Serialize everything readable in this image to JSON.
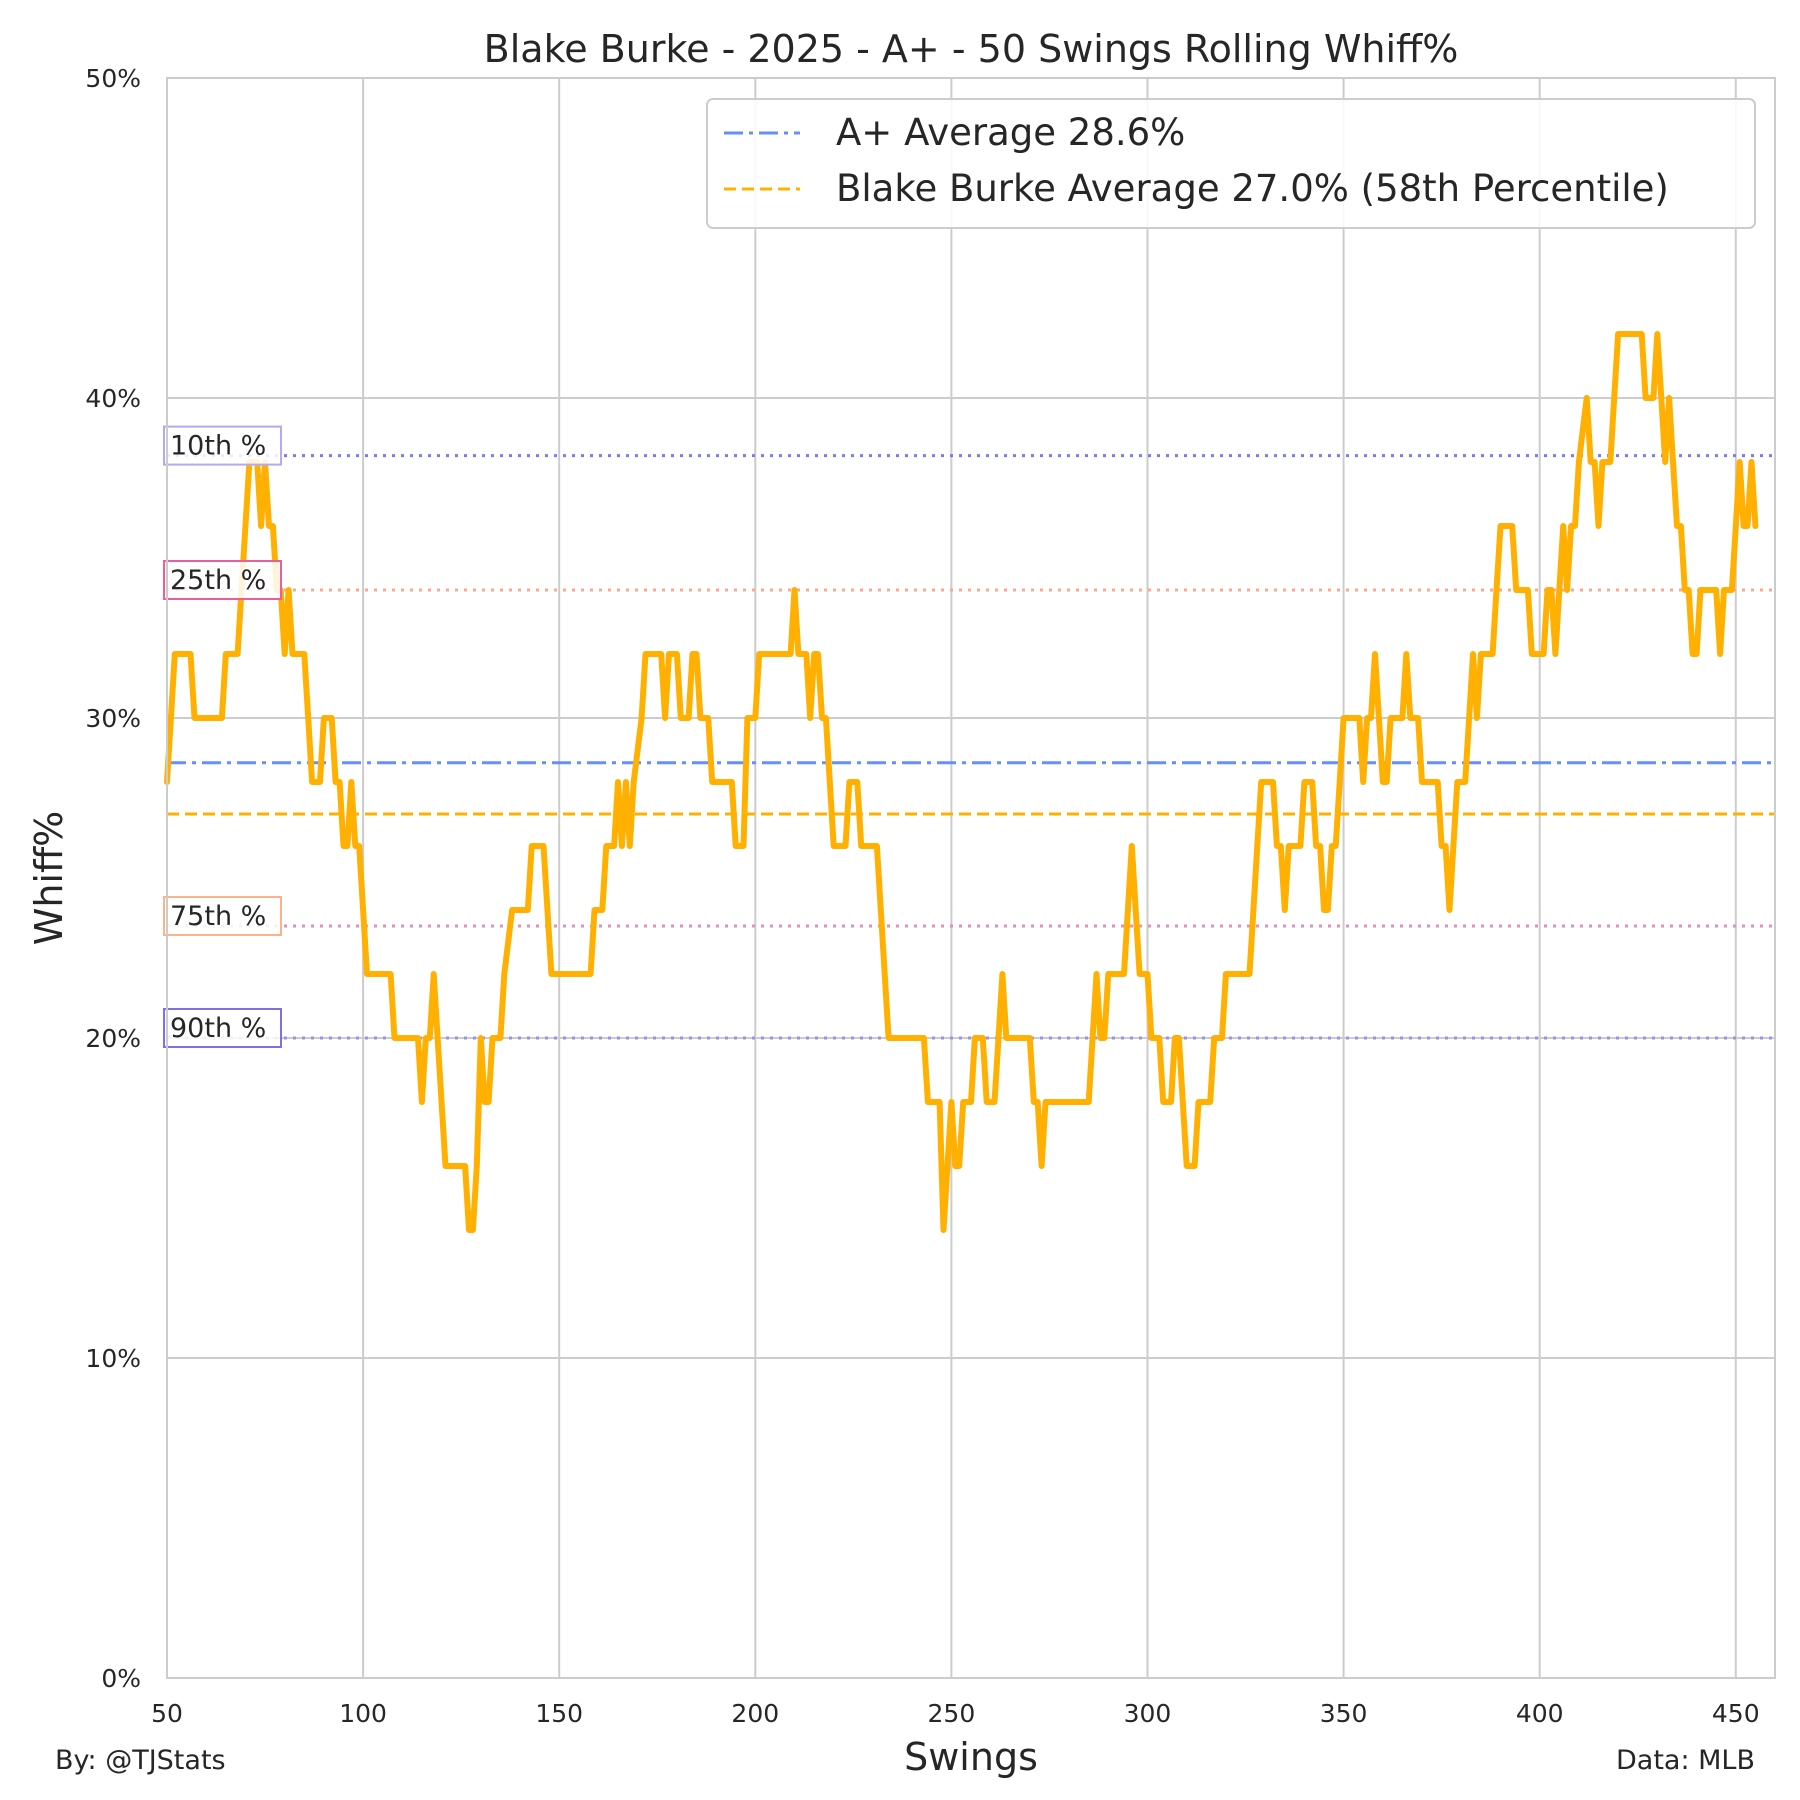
{
  "footer": {
    "credit": "By: @TJStats",
    "source": "Data: MLB"
  },
  "colors": {
    "rolling": "#FFB000",
    "league_avg": "#648FFF",
    "player_avg": "#FFB000",
    "p10": "#785EF0",
    "p25": "#FE6100",
    "p75": "#DC267F",
    "p90": "#648FFF",
    "grid": "#CCCCCC",
    "text": "#262626"
  },
  "chart_data": {
    "type": "line",
    "title": "Blake Burke - 2025 - A+ - 50 Swings Rolling Whiff%",
    "xlabel": "Swings",
    "ylabel": "Whiff%",
    "xlim": [
      50,
      460
    ],
    "ylim": [
      0,
      50
    ],
    "x_ticks": [
      "50",
      "100",
      "150",
      "200",
      "250",
      "300",
      "350",
      "400",
      "450"
    ],
    "y_ticks": [
      "0%",
      "10%",
      "20%",
      "30%",
      "40%",
      "50%"
    ],
    "grid": true,
    "legend_position": "top-right",
    "legend": [
      {
        "label": "A+ Average 28.6%",
        "style": "dashdot",
        "color": "#648FFF"
      },
      {
        "label": "Blake Burke Average 27.0% (58th Percentile)",
        "style": "dashed",
        "color": "#FFB000"
      }
    ],
    "reference_lines": [
      {
        "name": "A+ Average",
        "value": 28.6,
        "style": "dashdot",
        "color": "#648FFF"
      },
      {
        "name": "Blake Burke Average",
        "value": 27.0,
        "style": "dashed",
        "color": "#FFB000"
      }
    ],
    "percentile_lines": [
      {
        "label": "10th %",
        "value": 38.2,
        "line_color": "#7B7BF0",
        "box_color": "#B5A8F5"
      },
      {
        "label": "25th %",
        "value": 34.0,
        "line_color": "#FCA98A",
        "box_color": "#E85FA0"
      },
      {
        "label": "75th %",
        "value": 23.5,
        "line_color": "#E28FBE",
        "box_color": "#FDB38A"
      },
      {
        "label": "90th %",
        "value": 20.0,
        "line_color": "#9B94E6",
        "box_color": "#7D6EEA"
      }
    ],
    "series": [
      {
        "color": "#FFB000",
        "points": [
          [
            50,
            28
          ],
          [
            51,
            30
          ],
          [
            52,
            32
          ],
          [
            56,
            32
          ],
          [
            57,
            30
          ],
          [
            64,
            30
          ],
          [
            65,
            32
          ],
          [
            68,
            32
          ],
          [
            69,
            34
          ],
          [
            71,
            38
          ],
          [
            73,
            38
          ],
          [
            74,
            36
          ],
          [
            75,
            38
          ],
          [
            76,
            36
          ],
          [
            77,
            36
          ],
          [
            78,
            34
          ],
          [
            79,
            34
          ],
          [
            80,
            32
          ],
          [
            81,
            34
          ],
          [
            82,
            32
          ],
          [
            85,
            32
          ],
          [
            86,
            30
          ],
          [
            87,
            28
          ],
          [
            89,
            28
          ],
          [
            90,
            30
          ],
          [
            92,
            30
          ],
          [
            93,
            28
          ],
          [
            94,
            28
          ],
          [
            95,
            26
          ],
          [
            96,
            26
          ],
          [
            97,
            28
          ],
          [
            98,
            26
          ],
          [
            99,
            26
          ],
          [
            101,
            22
          ],
          [
            107,
            22
          ],
          [
            108,
            20
          ],
          [
            114,
            20
          ],
          [
            115,
            18
          ],
          [
            116,
            20
          ],
          [
            117,
            20
          ],
          [
            118,
            22
          ],
          [
            119,
            20
          ],
          [
            121,
            16
          ],
          [
            126,
            16
          ],
          [
            127,
            14
          ],
          [
            128,
            14
          ],
          [
            129,
            16
          ],
          [
            130,
            20
          ],
          [
            131,
            18
          ],
          [
            132,
            18
          ],
          [
            133,
            20
          ],
          [
            135,
            20
          ],
          [
            136,
            22
          ],
          [
            138,
            24
          ],
          [
            142,
            24
          ],
          [
            143,
            26
          ],
          [
            146,
            26
          ],
          [
            148,
            22
          ],
          [
            158,
            22
          ],
          [
            159,
            24
          ],
          [
            161,
            24
          ],
          [
            162,
            26
          ],
          [
            164,
            26
          ],
          [
            165,
            28
          ],
          [
            166,
            26
          ],
          [
            167,
            28
          ],
          [
            168,
            26
          ],
          [
            169,
            28
          ],
          [
            171,
            30
          ],
          [
            172,
            32
          ],
          [
            176,
            32
          ],
          [
            177,
            30
          ],
          [
            178,
            32
          ],
          [
            180,
            32
          ],
          [
            181,
            30
          ],
          [
            183,
            30
          ],
          [
            184,
            32
          ],
          [
            185,
            32
          ],
          [
            186,
            30
          ],
          [
            188,
            30
          ],
          [
            189,
            28
          ],
          [
            194,
            28
          ],
          [
            195,
            26
          ],
          [
            197,
            26
          ],
          [
            198,
            30
          ],
          [
            200,
            30
          ],
          [
            201,
            32
          ],
          [
            209,
            32
          ],
          [
            210,
            34
          ],
          [
            211,
            32
          ],
          [
            213,
            32
          ],
          [
            214,
            30
          ],
          [
            215,
            32
          ],
          [
            216,
            32
          ],
          [
            217,
            30
          ],
          [
            218,
            30
          ],
          [
            219,
            28
          ],
          [
            220,
            26
          ],
          [
            223,
            26
          ],
          [
            224,
            28
          ],
          [
            226,
            28
          ],
          [
            227,
            26
          ],
          [
            231,
            26
          ],
          [
            232,
            24
          ],
          [
            233,
            22
          ],
          [
            234,
            20
          ],
          [
            243,
            20
          ],
          [
            244,
            18
          ],
          [
            247,
            18
          ],
          [
            248,
            14
          ],
          [
            249,
            16
          ],
          [
            250,
            18
          ],
          [
            251,
            16
          ],
          [
            252,
            16
          ],
          [
            253,
            18
          ],
          [
            255,
            18
          ],
          [
            256,
            20
          ],
          [
            258,
            20
          ],
          [
            259,
            18
          ],
          [
            261,
            18
          ],
          [
            262,
            20
          ],
          [
            263,
            22
          ],
          [
            264,
            20
          ],
          [
            270,
            20
          ],
          [
            271,
            18
          ],
          [
            272,
            18
          ],
          [
            273,
            16
          ],
          [
            274,
            18
          ],
          [
            285,
            18
          ],
          [
            286,
            20
          ],
          [
            287,
            22
          ],
          [
            288,
            20
          ],
          [
            289,
            20
          ],
          [
            290,
            22
          ],
          [
            294,
            22
          ],
          [
            295,
            24
          ],
          [
            296,
            26
          ],
          [
            297,
            24
          ],
          [
            298,
            22
          ],
          [
            300,
            22
          ],
          [
            301,
            20
          ],
          [
            303,
            20
          ],
          [
            304,
            18
          ],
          [
            306,
            18
          ],
          [
            307,
            20
          ],
          [
            308,
            20
          ],
          [
            309,
            18
          ],
          [
            310,
            16
          ],
          [
            312,
            16
          ],
          [
            313,
            18
          ],
          [
            316,
            18
          ],
          [
            317,
            20
          ],
          [
            319,
            20
          ],
          [
            320,
            22
          ],
          [
            326,
            22
          ],
          [
            327,
            24
          ],
          [
            328,
            26
          ],
          [
            329,
            28
          ],
          [
            332,
            28
          ],
          [
            333,
            26
          ],
          [
            334,
            26
          ],
          [
            335,
            24
          ],
          [
            336,
            26
          ],
          [
            339,
            26
          ],
          [
            340,
            28
          ],
          [
            342,
            28
          ],
          [
            343,
            26
          ],
          [
            344,
            26
          ],
          [
            345,
            24
          ],
          [
            346,
            24
          ],
          [
            347,
            26
          ],
          [
            348,
            26
          ],
          [
            349,
            28
          ],
          [
            350,
            30
          ],
          [
            354,
            30
          ],
          [
            355,
            28
          ],
          [
            356,
            30
          ],
          [
            357,
            30
          ],
          [
            358,
            32
          ],
          [
            359,
            30
          ],
          [
            360,
            28
          ],
          [
            361,
            28
          ],
          [
            362,
            30
          ],
          [
            365,
            30
          ],
          [
            366,
            32
          ],
          [
            367,
            30
          ],
          [
            369,
            30
          ],
          [
            370,
            28
          ],
          [
            374,
            28
          ],
          [
            375,
            26
          ],
          [
            376,
            26
          ],
          [
            377,
            24
          ],
          [
            378,
            26
          ],
          [
            379,
            28
          ],
          [
            381,
            28
          ],
          [
            382,
            30
          ],
          [
            383,
            32
          ],
          [
            384,
            30
          ],
          [
            385,
            32
          ],
          [
            388,
            32
          ],
          [
            389,
            34
          ],
          [
            390,
            36
          ],
          [
            393,
            36
          ],
          [
            394,
            34
          ],
          [
            397,
            34
          ],
          [
            398,
            32
          ],
          [
            401,
            32
          ],
          [
            402,
            34
          ],
          [
            403,
            34
          ],
          [
            404,
            32
          ],
          [
            405,
            34
          ],
          [
            406,
            36
          ],
          [
            407,
            34
          ],
          [
            408,
            36
          ],
          [
            409,
            36
          ],
          [
            410,
            38
          ],
          [
            412,
            40
          ],
          [
            413,
            38
          ],
          [
            414,
            38
          ],
          [
            415,
            36
          ],
          [
            416,
            38
          ],
          [
            418,
            38
          ],
          [
            419,
            40
          ],
          [
            420,
            42
          ],
          [
            426,
            42
          ],
          [
            427,
            40
          ],
          [
            429,
            40
          ],
          [
            430,
            42
          ],
          [
            431,
            40
          ],
          [
            432,
            38
          ],
          [
            433,
            40
          ],
          [
            434,
            38
          ],
          [
            435,
            36
          ],
          [
            436,
            36
          ],
          [
            437,
            34
          ],
          [
            438,
            34
          ],
          [
            439,
            32
          ],
          [
            440,
            32
          ],
          [
            441,
            34
          ],
          [
            445,
            34
          ],
          [
            446,
            32
          ],
          [
            447,
            34
          ],
          [
            449,
            34
          ],
          [
            450,
            36
          ],
          [
            451,
            38
          ],
          [
            452,
            36
          ],
          [
            453,
            36
          ],
          [
            454,
            38
          ],
          [
            455,
            36
          ]
        ]
      }
    ]
  }
}
